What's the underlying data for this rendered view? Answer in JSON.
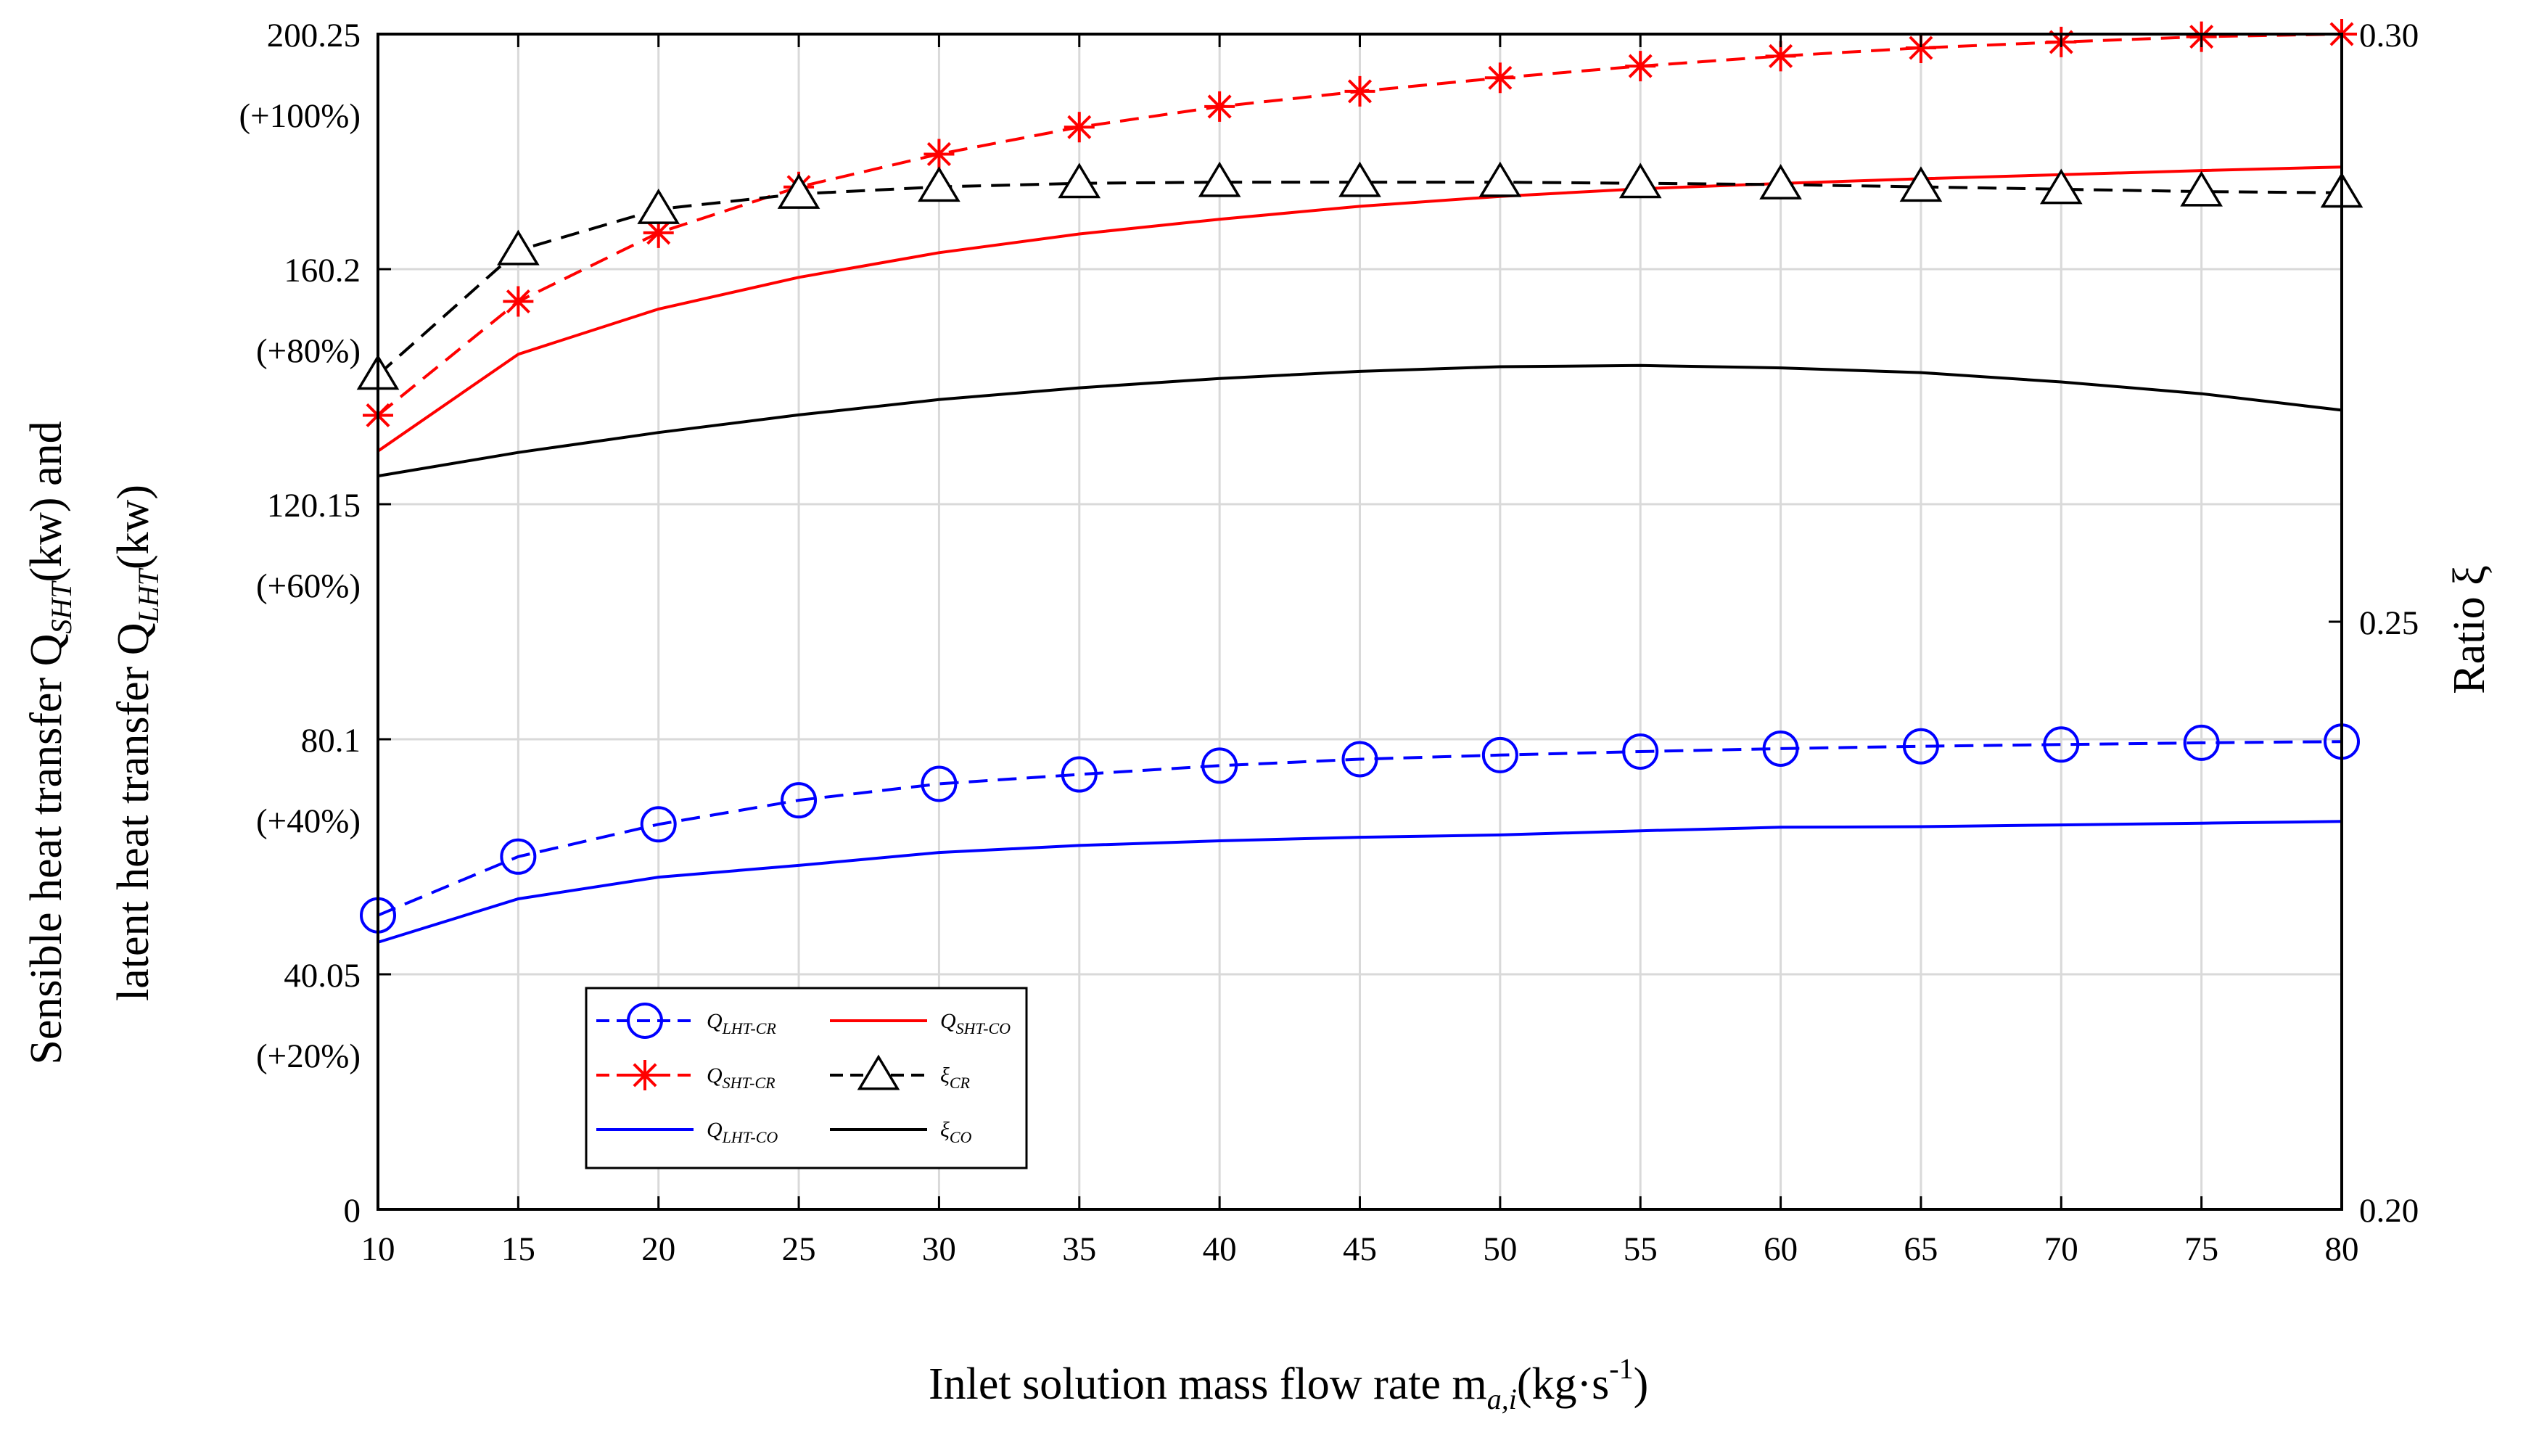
{
  "chart_data": {
    "type": "line",
    "xlabel": "Inlet solution mass flow rate m",
    "xlabel_var_sub": "a,i",
    "xlabel_unit_prefix": "(kg·s",
    "xlabel_unit_exp": "-1",
    "xlabel_unit_suffix": ")",
    "ylabel_left_line1": "Sensible heat transfer Q",
    "ylabel_left_line1_sub": "SHT",
    "ylabel_left_line1_unit": "(kw) and",
    "ylabel_left_line2": "latent heat transfer Q",
    "ylabel_left_line2_sub": "LHT",
    "ylabel_left_line2_unit": "(kw)",
    "ylabel_right": "Ratio  ξ",
    "xlim": [
      10,
      80
    ],
    "ylim_left": [
      0,
      200.25
    ],
    "ylim_right": [
      0.2,
      0.3
    ],
    "grid": true,
    "x_ticks": [
      10,
      15,
      20,
      25,
      30,
      35,
      40,
      45,
      50,
      55,
      60,
      65,
      70,
      75,
      80
    ],
    "x_tick_labels": [
      "10",
      "15",
      "20",
      "25",
      "30",
      "35",
      "40",
      "45",
      "50",
      "55",
      "60",
      "65",
      "70",
      "75",
      "80"
    ],
    "y_left_ticks": [
      {
        "value": 0,
        "label": "0",
        "pct": ""
      },
      {
        "value": 40.05,
        "label": "40.05",
        "pct": "(+20%)"
      },
      {
        "value": 80.1,
        "label": "80.1",
        "pct": "(+40%)"
      },
      {
        "value": 120.15,
        "label": "120.15",
        "pct": "(+60%)"
      },
      {
        "value": 160.2,
        "label": "160.2",
        "pct": "(+80%)"
      },
      {
        "value": 200.25,
        "label": "200.25",
        "pct": "(+100%)"
      }
    ],
    "y_right_ticks": [
      {
        "value": 0.2,
        "label": "0.20"
      },
      {
        "value": 0.25,
        "label": "0.25"
      },
      {
        "value": 0.3,
        "label": "0.30"
      }
    ],
    "series": [
      {
        "key": "q_lht_cr",
        "name": "Q",
        "sub": "LHT-CR",
        "axis": "left",
        "color": "#0000ff",
        "dash": true,
        "marker": "circle",
        "x": [
          10,
          15,
          20,
          25,
          30,
          35,
          40,
          45,
          50,
          55,
          60,
          65,
          70,
          75,
          80
        ],
        "y": [
          50.1,
          60.1,
          65.6,
          69.7,
          72.5,
          74.1,
          75.6,
          76.7,
          77.4,
          78.0,
          78.5,
          78.9,
          79.2,
          79.5,
          79.7
        ]
      },
      {
        "key": "q_sht_cr",
        "name": "Q",
        "sub": "SHT-CR",
        "axis": "left",
        "color": "#ff0000",
        "dash": true,
        "marker": "star",
        "x": [
          10,
          15,
          20,
          25,
          30,
          35,
          40,
          45,
          50,
          55,
          60,
          65,
          70,
          75,
          80
        ],
        "y": [
          135.3,
          154.7,
          166.4,
          174.2,
          179.8,
          184.4,
          187.9,
          190.5,
          192.8,
          194.8,
          196.5,
          197.9,
          198.9,
          199.8,
          200.25
        ]
      },
      {
        "key": "q_lht_co",
        "name": "Q",
        "sub": "LHT-CO",
        "axis": "left",
        "color": "#0000ff",
        "dash": false,
        "marker": "none",
        "x": [
          10,
          15,
          20,
          25,
          30,
          35,
          40,
          45,
          50,
          55,
          60,
          65,
          70,
          75,
          80
        ],
        "y": [
          45.5,
          52.9,
          56.6,
          58.6,
          60.8,
          62.0,
          62.8,
          63.4,
          63.8,
          64.5,
          65.1,
          65.2,
          65.5,
          65.8,
          66.1
        ]
      },
      {
        "key": "q_sht_co",
        "name": "Q",
        "sub": "SHT-CO",
        "axis": "left",
        "color": "#ff0000",
        "dash": false,
        "marker": "none",
        "x": [
          10,
          15,
          20,
          25,
          30,
          35,
          40,
          45,
          50,
          55,
          60,
          65,
          70,
          75,
          80
        ],
        "y": [
          129.2,
          145.7,
          153.4,
          158.8,
          163.0,
          166.2,
          168.7,
          170.9,
          172.6,
          173.9,
          174.8,
          175.6,
          176.3,
          177.0,
          177.6
        ]
      },
      {
        "key": "xi_cr",
        "name": "ξ",
        "sub": "CR",
        "axis": "right",
        "color": "#000000",
        "dash": true,
        "marker": "triangle",
        "x": [
          10,
          15,
          20,
          25,
          30,
          35,
          40,
          45,
          50,
          55,
          60,
          65,
          70,
          75,
          80
        ],
        "y": [
          0.271,
          0.2816,
          0.2851,
          0.2864,
          0.287,
          0.2873,
          0.2874,
          0.2874,
          0.2874,
          0.2873,
          0.2872,
          0.287,
          0.2868,
          0.2866,
          0.2865
        ]
      },
      {
        "key": "xi_co",
        "name": "ξ",
        "sub": "CO",
        "axis": "right",
        "color": "#000000",
        "dash": false,
        "marker": "none",
        "x": [
          10,
          15,
          20,
          25,
          30,
          35,
          40,
          45,
          50,
          55,
          60,
          65,
          70,
          75,
          80
        ],
        "y": [
          0.2624,
          0.2644,
          0.2661,
          0.2676,
          0.2689,
          0.2699,
          0.2707,
          0.2713,
          0.2717,
          0.2718,
          0.2716,
          0.2712,
          0.2704,
          0.2694,
          0.268
        ]
      }
    ],
    "legend": {
      "placement": "bottom-left",
      "order": [
        "q_lht_cr",
        "q_sht_co",
        "q_sht_cr",
        "xi_cr",
        "q_lht_co",
        "xi_co"
      ]
    }
  }
}
